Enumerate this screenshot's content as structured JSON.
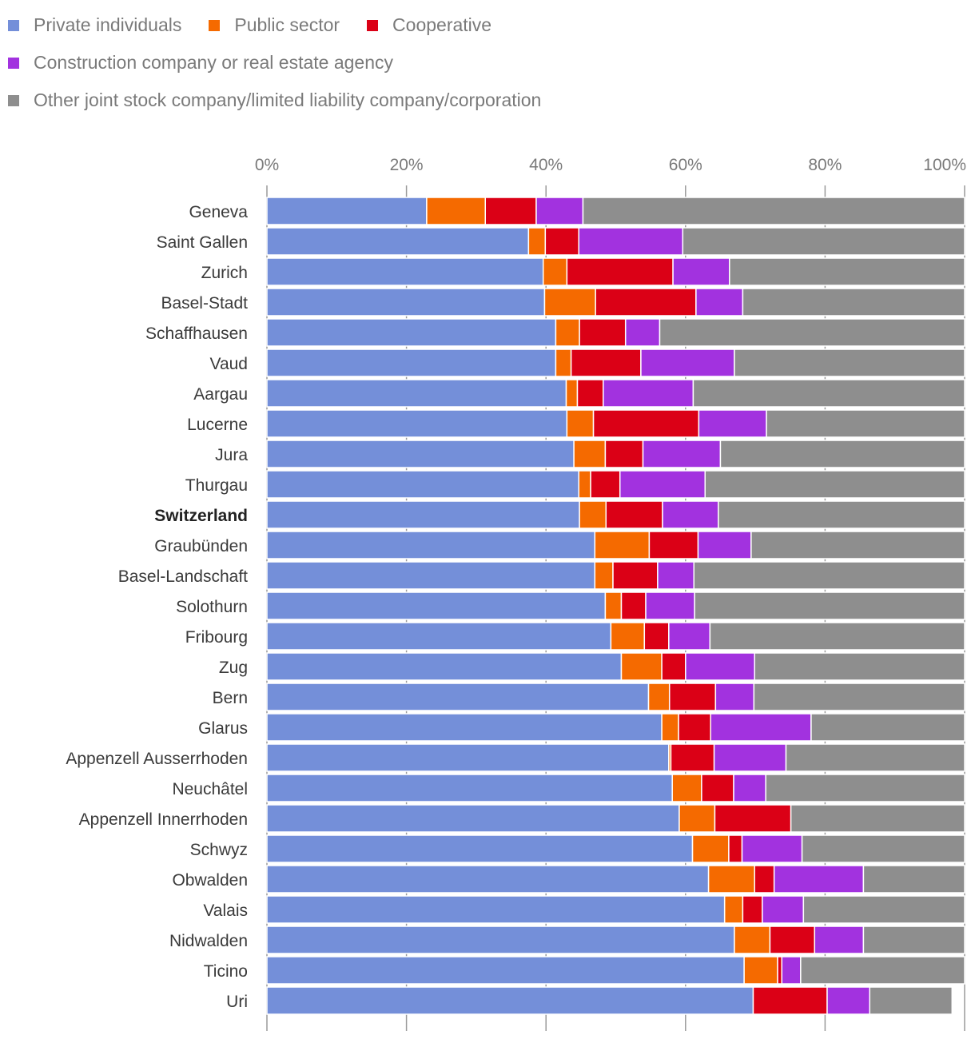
{
  "chart_data": {
    "type": "bar",
    "orientation": "horizontal",
    "stacked": true,
    "title": "",
    "xlabel": "",
    "ylabel": "",
    "xlim": [
      0,
      100
    ],
    "grid": true,
    "legend_position": "top-left",
    "x_ticks": [
      "0%",
      "20%",
      "40%",
      "60%",
      "80%",
      "100%"
    ],
    "x_tick_values": [
      0,
      20,
      40,
      60,
      80,
      100
    ],
    "highlight_category": "Switzerland",
    "categories": [
      "Geneva",
      "Saint Gallen",
      "Zurich",
      "Basel-Stadt",
      "Schaffhausen",
      "Vaud",
      "Aargau",
      "Lucerne",
      "Jura",
      "Thurgau",
      "Switzerland",
      "Graubünden",
      "Basel-Landschaft",
      "Solothurn",
      "Fribourg",
      "Zug",
      "Bern",
      "Glarus",
      "Appenzell Ausserrhoden",
      "Neuchâtel",
      "Appenzell Innerrhoden",
      "Schwyz",
      "Obwalden",
      "Valais",
      "Nidwalden",
      "Ticino",
      "Uri"
    ],
    "series": [
      {
        "name": "Private individuals",
        "color": "#748fd9",
        "values": [
          22.9,
          37.5,
          39.6,
          39.8,
          41.4,
          41.4,
          42.9,
          43.0,
          44.0,
          44.7,
          44.8,
          47.0,
          47.0,
          48.5,
          49.3,
          50.8,
          54.7,
          56.6,
          57.6,
          58.1,
          59.1,
          61.0,
          63.3,
          65.6,
          67.0,
          68.4,
          69.7
        ]
      },
      {
        "name": "Public sector",
        "color": "#f56a00",
        "values": [
          8.4,
          2.4,
          3.4,
          7.3,
          3.4,
          2.2,
          1.6,
          3.8,
          4.5,
          1.7,
          3.8,
          7.8,
          2.6,
          2.3,
          4.8,
          5.8,
          3.0,
          2.4,
          0.3,
          4.2,
          5.1,
          5.2,
          6.6,
          2.6,
          5.1,
          4.8,
          0.0
        ]
      },
      {
        "name": "Cooperative",
        "color": "#db0016",
        "values": [
          7.3,
          4.8,
          15.2,
          14.4,
          6.6,
          10.0,
          3.7,
          15.1,
          5.4,
          4.2,
          8.1,
          7.0,
          6.4,
          3.5,
          3.5,
          3.4,
          6.6,
          4.6,
          6.2,
          4.6,
          10.9,
          1.9,
          2.8,
          2.8,
          6.4,
          0.6,
          10.6
        ]
      },
      {
        "name": "Construction company or real estate agency",
        "color": "#a232df",
        "values": [
          6.7,
          14.9,
          8.1,
          6.7,
          4.9,
          13.4,
          12.9,
          9.7,
          11.1,
          12.2,
          8.0,
          7.6,
          5.2,
          7.0,
          5.9,
          9.9,
          5.5,
          14.4,
          10.3,
          4.6,
          0.0,
          8.6,
          12.8,
          5.9,
          7.0,
          2.7,
          6.1
        ]
      },
      {
        "name": "Other joint stock company/limited liability company/corporation",
        "color": "#8e8e8e",
        "values": [
          54.7,
          40.4,
          33.7,
          31.8,
          43.7,
          33.0,
          38.9,
          28.4,
          35.0,
          37.2,
          35.3,
          30.6,
          38.8,
          38.7,
          36.5,
          30.1,
          30.2,
          22.0,
          25.6,
          28.5,
          24.9,
          23.3,
          14.5,
          23.1,
          14.5,
          23.5,
          11.8
        ]
      }
    ]
  }
}
